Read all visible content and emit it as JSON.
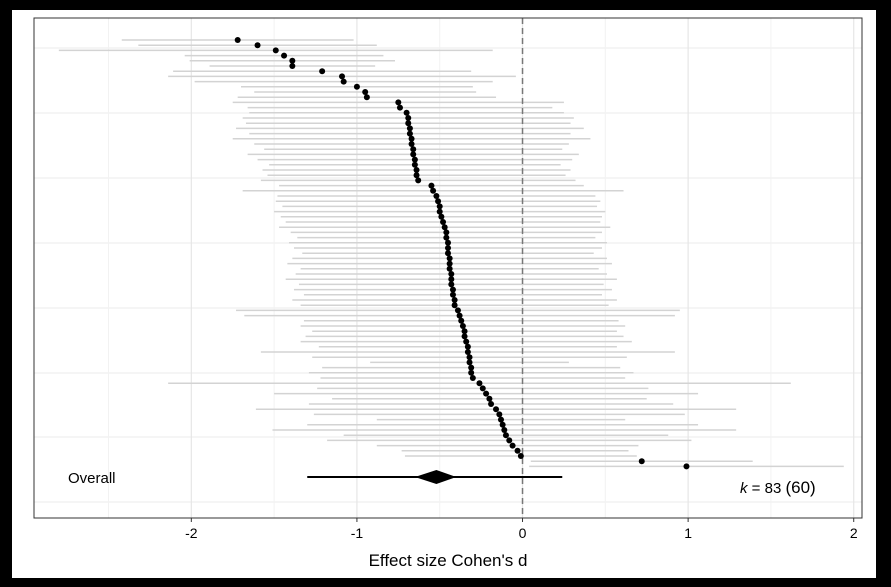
{
  "chart_data": {
    "type": "forest",
    "x_label": "Effect size Cohen's d",
    "xlim": [
      -2.95,
      2.05
    ],
    "xticks": [
      -2,
      -1,
      0,
      1,
      2
    ],
    "xminorticks": [
      -2.5,
      -1.5,
      -0.5,
      0.5,
      1.5
    ],
    "reference_line": 0,
    "grid": true,
    "point_color": "#000000",
    "ci_color": "#d3d3d3",
    "studies": {
      "values": [
        -1.72,
        -1.6,
        -1.49,
        -1.44,
        -1.39,
        -1.39,
        -1.21,
        -1.09,
        -1.08,
        -1.0,
        -0.95,
        -0.94,
        -0.75,
        -0.74,
        -0.7,
        -0.69,
        -0.69,
        -0.68,
        -0.68,
        -0.67,
        -0.67,
        -0.66,
        -0.66,
        -0.65,
        -0.65,
        -0.64,
        -0.64,
        -0.63,
        -0.55,
        -0.54,
        -0.52,
        -0.51,
        -0.5,
        -0.5,
        -0.49,
        -0.48,
        -0.47,
        -0.46,
        -0.46,
        -0.45,
        -0.45,
        -0.45,
        -0.44,
        -0.44,
        -0.44,
        -0.43,
        -0.43,
        -0.43,
        -0.42,
        -0.42,
        -0.41,
        -0.41,
        -0.39,
        -0.38,
        -0.37,
        -0.36,
        -0.35,
        -0.35,
        -0.34,
        -0.33,
        -0.33,
        -0.32,
        -0.32,
        -0.31,
        -0.31,
        -0.3,
        -0.26,
        -0.24,
        -0.22,
        -0.2,
        -0.19,
        -0.16,
        -0.14,
        -0.13,
        -0.12,
        -0.11,
        -0.1,
        -0.08,
        -0.06,
        -0.03,
        -0.01,
        0.72,
        0.99
      ],
      "lower": [
        -2.42,
        -2.32,
        -2.8,
        -2.04,
        -2.01,
        -1.89,
        -2.11,
        -2.14,
        -1.98,
        -1.7,
        -1.62,
        -1.72,
        -1.75,
        -1.66,
        -1.65,
        -1.69,
        -1.67,
        -1.73,
        -1.65,
        -1.75,
        -1.62,
        -1.56,
        -1.66,
        -1.6,
        -1.53,
        -1.57,
        -1.54,
        -1.58,
        -1.47,
        -1.69,
        -1.48,
        -1.49,
        -1.45,
        -1.5,
        -1.46,
        -1.43,
        -1.47,
        -1.4,
        -1.36,
        -1.41,
        -1.38,
        -1.33,
        -1.39,
        -1.42,
        -1.34,
        -1.37,
        -1.43,
        -1.35,
        -1.38,
        -1.32,
        -1.39,
        -1.34,
        -1.73,
        -1.68,
        -1.32,
        -1.34,
        -1.27,
        -1.31,
        -1.34,
        -1.23,
        -1.58,
        -1.27,
        -0.92,
        -1.21,
        -1.29,
        -1.22,
        -2.14,
        -1.24,
        -1.5,
        -1.15,
        -1.29,
        -1.61,
        -1.26,
        -0.88,
        -1.3,
        -1.51,
        -1.08,
        -1.18,
        -0.88,
        -0.73,
        -0.71,
        0.05,
        0.04
      ],
      "upper": [
        -1.02,
        -0.88,
        -0.18,
        -0.84,
        -0.77,
        -0.89,
        -0.31,
        -0.04,
        -0.18,
        -0.3,
        -0.28,
        -0.16,
        0.25,
        0.18,
        0.25,
        0.31,
        0.29,
        0.37,
        0.29,
        0.41,
        0.28,
        0.24,
        0.34,
        0.3,
        0.23,
        0.29,
        0.26,
        0.32,
        0.37,
        0.61,
        0.44,
        0.47,
        0.45,
        0.5,
        0.48,
        0.47,
        0.53,
        0.48,
        0.44,
        0.51,
        0.48,
        0.43,
        0.51,
        0.54,
        0.46,
        0.51,
        0.57,
        0.49,
        0.54,
        0.48,
        0.57,
        0.52,
        0.95,
        0.92,
        0.58,
        0.62,
        0.57,
        0.61,
        0.66,
        0.57,
        0.92,
        0.63,
        0.28,
        0.59,
        0.67,
        0.62,
        1.62,
        0.76,
        1.06,
        0.75,
        0.91,
        1.29,
        0.98,
        0.62,
        1.06,
        1.29,
        0.88,
        1.02,
        0.7,
        0.64,
        0.69,
        1.39,
        1.94
      ]
    },
    "overall": {
      "label": "Overall",
      "estimate": -0.52,
      "ci_lower": -0.65,
      "ci_upper": -0.4,
      "pi_lower": -1.3,
      "pi_upper": 0.24
    },
    "annotation": {
      "k_symbol": "k",
      "k_text": "= 83",
      "clusters": "(60)"
    }
  }
}
